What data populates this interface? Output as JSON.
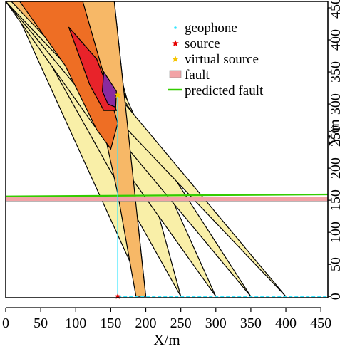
{
  "chart_data": {
    "type": "scatter",
    "xlabel": "X/m",
    "ylabel": "Y/m",
    "xlim": [
      0,
      460
    ],
    "ylim": [
      -2,
      460
    ],
    "x_ticks": [
      0,
      50,
      100,
      150,
      200,
      250,
      300,
      350,
      400,
      450
    ],
    "y_ticks": [
      0,
      50,
      100,
      150,
      200,
      250,
      300,
      350,
      400,
      450
    ],
    "legend_position": "top-right",
    "legend": [
      {
        "label": "geophone",
        "symbol": "point",
        "color": "#33e6ff"
      },
      {
        "label": "source",
        "symbol": "star",
        "color": "#e60000"
      },
      {
        "label": "virtual source",
        "symbol": "star",
        "color": "#f5c400"
      },
      {
        "label": "fault",
        "symbol": "box",
        "color": "#f2a3a6"
      },
      {
        "label": "predicted fault",
        "symbol": "line",
        "color": "#33cc00"
      }
    ],
    "source": {
      "x": 160,
      "y": 0
    },
    "virtual_source": {
      "x": 160,
      "y": 314
    },
    "geophones": {
      "x_start": 160,
      "x_end": 460,
      "y": 0
    },
    "fault": {
      "y": 152,
      "thickness": 6
    },
    "predicted_fault": {
      "y_left": 156,
      "y_right": 159
    },
    "wedges": [
      {
        "x_bottom": 200,
        "x_top_left": 8,
        "x_top_right": 155,
        "color": "#f9efa8"
      },
      {
        "x_bottom": 250,
        "x_top_left": 14,
        "x_top_right": 135,
        "color": "#f9efa8"
      },
      {
        "x_bottom": 300,
        "x_top_left": 0,
        "x_top_right": 110,
        "color": "#f9efa8"
      },
      {
        "x_bottom": 350,
        "x_top_left": 0,
        "x_top_right": 78,
        "color": "#f9efa8"
      },
      {
        "x_bottom": 400,
        "x_top_left": 0,
        "x_top_right": 48,
        "color": "#f9efa8"
      }
    ],
    "overlap_regions": [
      {
        "level": 2,
        "color": "#f7b867",
        "points": [
          [
            8,
            460
          ],
          [
            155,
            460
          ],
          [
            200,
            0
          ],
          [
            186,
            0
          ],
          [
            160,
            160
          ],
          [
            132,
            300
          ],
          [
            60,
            400
          ]
        ]
      },
      {
        "level": 3,
        "color": "#ee6e24",
        "points": [
          [
            20,
            460
          ],
          [
            110,
            460
          ],
          [
            160,
            270
          ],
          [
            150,
            230
          ],
          [
            130,
            260
          ],
          [
            85,
            360
          ]
        ]
      },
      {
        "level": 4,
        "color": "#e8232a",
        "points": [
          [
            90,
            420
          ],
          [
            130,
            370
          ],
          [
            158,
            290
          ],
          [
            140,
            290
          ],
          [
            120,
            330
          ]
        ]
      },
      {
        "level": 5,
        "color": "#8a2aa0",
        "points": [
          [
            140,
            350
          ],
          [
            158,
            320
          ],
          [
            157,
            295
          ],
          [
            146,
            300
          ],
          [
            138,
            320
          ]
        ]
      }
    ]
  }
}
